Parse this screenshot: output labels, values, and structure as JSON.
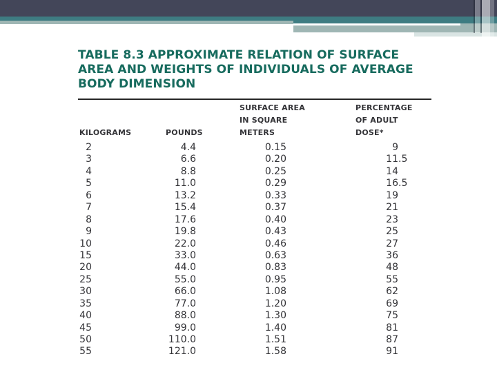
{
  "slide": {
    "title_lines": [
      "TABLE 8.3 APPROXIMATE RELATION OF SURFACE",
      "AREA AND WEIGHTS OF INDIVIDUALS OF AVERAGE",
      "BODY DIMENSION"
    ],
    "colors": {
      "title": "#176B5E",
      "text": "#343438",
      "rule": "#262626",
      "bar_dark": "#434659",
      "bar_teal": "#3E7C82",
      "bar_sage": "#9FB6B4",
      "bar_pale": "#D9E4E3"
    },
    "table": {
      "columns": [
        {
          "id": "kilograms",
          "lines": [
            "",
            "",
            "KILOGRAMS"
          ]
        },
        {
          "id": "pounds",
          "lines": [
            "",
            "",
            "POUNDS"
          ]
        },
        {
          "id": "surface-area",
          "lines": [
            "SURFACE AREA",
            "IN SQUARE",
            "METERS"
          ]
        },
        {
          "id": "adult-dose",
          "lines": [
            "PERCENTAGE",
            "OF ADULT",
            "DOSE*"
          ]
        }
      ],
      "rows": [
        [
          "2",
          "4.4",
          "0.15",
          "9"
        ],
        [
          "3",
          "6.6",
          "0.20",
          "11.5"
        ],
        [
          "4",
          "8.8",
          "0.25",
          "14"
        ],
        [
          "5",
          "11.0",
          "0.29",
          "16.5"
        ],
        [
          "6",
          "13.2",
          "0.33",
          "19"
        ],
        [
          "7",
          "15.4",
          "0.37",
          "21"
        ],
        [
          "8",
          "17.6",
          "0.40",
          "23"
        ],
        [
          "9",
          "19.8",
          "0.43",
          "25"
        ],
        [
          "10",
          "22.0",
          "0.46",
          "27"
        ],
        [
          "15",
          "33.0",
          "0.63",
          "36"
        ],
        [
          "20",
          "44.0",
          "0.83",
          "48"
        ],
        [
          "25",
          "55.0",
          "0.95",
          "55"
        ],
        [
          "30",
          "66.0",
          "1.08",
          "62"
        ],
        [
          "35",
          "77.0",
          "1.20",
          "69"
        ],
        [
          "40",
          "88.0",
          "1.30",
          "75"
        ],
        [
          "45",
          "99.0",
          "1.40",
          "81"
        ],
        [
          "50",
          "110.0",
          "1.51",
          "87"
        ],
        [
          "55",
          "121.0",
          "1.58",
          "91"
        ]
      ]
    }
  }
}
